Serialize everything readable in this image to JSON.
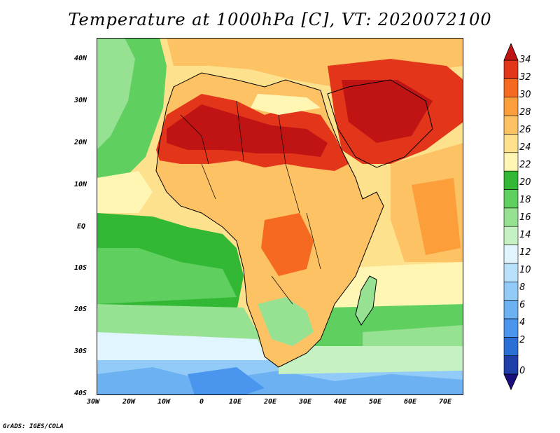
{
  "title": "Temperature at 1000hPa [C], VT: 2020072100",
  "credit": "GrADS: IGES/COLA",
  "map": {
    "lat_labels": [
      "40N",
      "30N",
      "20N",
      "10N",
      "EQ",
      "10S",
      "20S",
      "30S",
      "40S"
    ],
    "lon_labels": [
      "30W",
      "20W",
      "10W",
      "0",
      "10E",
      "20E",
      "30E",
      "40E",
      "50E",
      "60E",
      "70E"
    ],
    "lat_range": [
      -40,
      45
    ],
    "lon_range": [
      -30,
      75
    ],
    "variable": "Temperature at 1000hPa",
    "unit": "C"
  },
  "colorbar": {
    "labels": [
      "34",
      "32",
      "30",
      "28",
      "26",
      "24",
      "22",
      "20",
      "18",
      "16",
      "14",
      "12",
      "10",
      "8",
      "6",
      "4",
      "2",
      "0"
    ],
    "colors": [
      "#1a0e7e",
      "#1f3ea8",
      "#2a6fd6",
      "#4a95ee",
      "#6cb2f2",
      "#92cbf7",
      "#b9e1fb",
      "#e0f5fe",
      "#c6f2c3",
      "#96e292",
      "#5fcf5f",
      "#32b834",
      "#fff6b3",
      "#fde18c",
      "#fdc264",
      "#fc9e3a",
      "#f56a20",
      "#e2351a",
      "#c01414"
    ]
  }
}
